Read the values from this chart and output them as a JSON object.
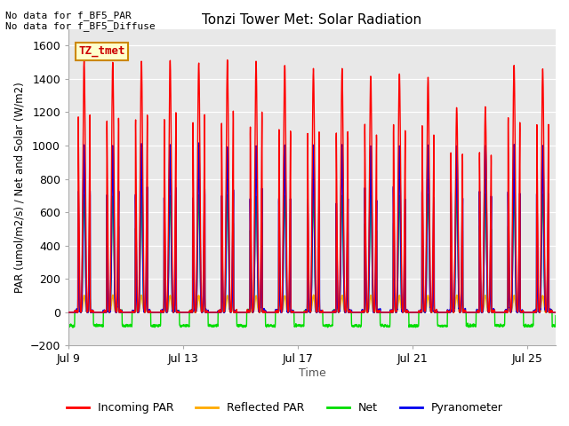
{
  "title": "Tonzi Tower Met: Solar Radiation",
  "xlabel": "Time",
  "ylabel": "PAR (umol/m2/s) / Net and Solar (W/m2)",
  "ylim": [
    -200,
    1700
  ],
  "yticks": [
    -200,
    0,
    200,
    400,
    600,
    800,
    1000,
    1200,
    1400,
    1600
  ],
  "annotation1": "No data for f_BF5_PAR",
  "annotation2": "No data for f_BF5_Diffuse",
  "legend_label": "TZ_tmet",
  "legend_entries": [
    "Incoming PAR",
    "Reflected PAR",
    "Net",
    "Pyranometer"
  ],
  "line_colors": [
    "#ff0000",
    "#ffaa00",
    "#00dd00",
    "#0000ee"
  ],
  "plot_background": "#e8e8e8",
  "grid_color": "#ffffff",
  "n_days": 17,
  "start_day": 9,
  "x_tick_days": [
    0,
    4,
    8,
    12,
    16
  ],
  "x_tick_labels": [
    "Jul 9",
    "Jul 13",
    "Jul 17",
    "Jul 21",
    "Jul 25"
  ]
}
